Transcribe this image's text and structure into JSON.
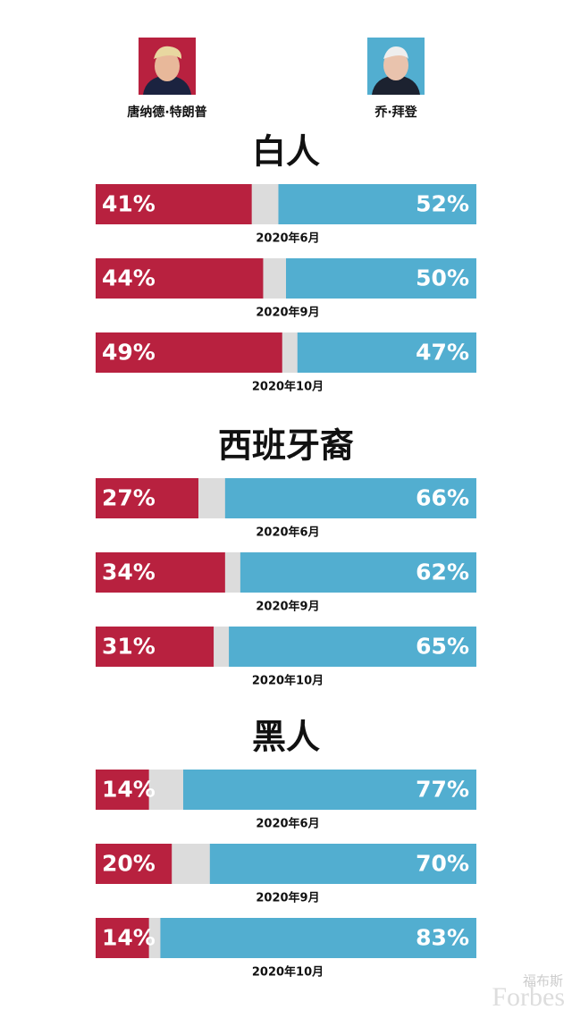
{
  "chart_data": [
    {
      "type": "bar",
      "title": "白人",
      "categories": [
        "2020年6月",
        "2020年9月",
        "2020年10月"
      ],
      "series": [
        {
          "name": "唐纳德·特朗普",
          "color": "#b8213f",
          "values": [
            41,
            44,
            49
          ],
          "value_labels": [
            "41%",
            "44%",
            "49%"
          ]
        },
        {
          "name": "乔·拜登",
          "color": "#52aed0",
          "values": [
            52,
            50,
            47
          ],
          "value_labels": [
            "52%",
            "50%",
            "47%"
          ]
        }
      ],
      "xlim": [
        0,
        100
      ]
    },
    {
      "type": "bar",
      "title": "西班牙裔",
      "categories": [
        "2020年6月",
        "2020年9月",
        "2020年10月"
      ],
      "series": [
        {
          "color": "#b8213f",
          "values": [
            27,
            34,
            31
          ],
          "value_labels": [
            "27%",
            "34%",
            "31%"
          ]
        },
        {
          "color": "#52aed0",
          "values": [
            66,
            62,
            65
          ],
          "value_labels": [
            "66%",
            "62%",
            "65%"
          ]
        }
      ],
      "xlim": [
        0,
        100
      ]
    },
    {
      "type": "bar",
      "title": "黑人",
      "categories": [
        "2020年6月",
        "2020年9月",
        "2020年10月"
      ],
      "series": [
        {
          "color": "#b8213f",
          "values": [
            14,
            20,
            14
          ],
          "value_labels": [
            "14%",
            "20%",
            "14%"
          ]
        },
        {
          "color": "#52aed0",
          "values": [
            77,
            70,
            83
          ],
          "value_labels": [
            "77%",
            "70%",
            "83%"
          ]
        }
      ],
      "xlim": [
        0,
        100
      ]
    }
  ],
  "watermark": {
    "cn": "福布斯",
    "en": "Forbes"
  }
}
